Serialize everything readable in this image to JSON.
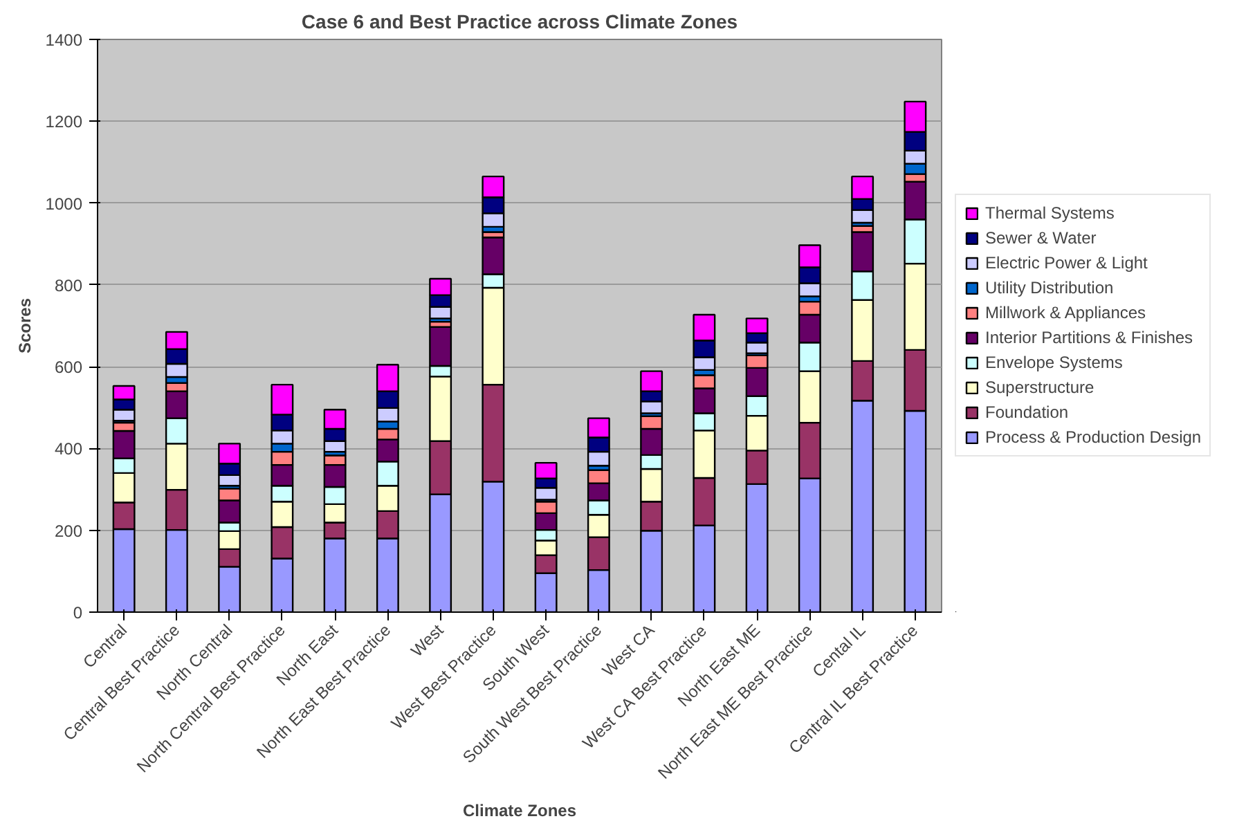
{
  "chart_data": {
    "type": "bar",
    "stacked": true,
    "title": "Case 6 and Best Practice across Climate Zones",
    "xlabel": "Climate Zones",
    "ylabel": "Scores",
    "categories": [
      "Central",
      "Central Best Practice",
      "North Central",
      "North Central Best Practice",
      "North East",
      "North East Best Practice",
      "West",
      "West Best Practice",
      "South West",
      "South West Best Practice",
      "West CA",
      "West CA Best Practice",
      "North East ME",
      "North East ME Best Practice",
      "Cental IL",
      "Central IL Best Practice"
    ],
    "ylim": [
      0,
      1400
    ],
    "yticks": [
      0,
      200,
      400,
      600,
      800,
      1000,
      1200,
      1400
    ],
    "grid": "y",
    "legend": "right",
    "series": [
      {
        "name": "Process & Production Design",
        "color": "#9999ff",
        "values": [
          203,
          201,
          111,
          131,
          180,
          180,
          288,
          319,
          95,
          103,
          199,
          212,
          313,
          327,
          517,
          492
        ]
      },
      {
        "name": "Foundation",
        "color": "#993366",
        "values": [
          65,
          98,
          43,
          77,
          39,
          67,
          130,
          237,
          44,
          80,
          71,
          116,
          82,
          136,
          97,
          149
        ]
      },
      {
        "name": "Superstructure",
        "color": "#ffffcc",
        "values": [
          72,
          113,
          44,
          62,
          45,
          62,
          158,
          237,
          36,
          55,
          80,
          116,
          85,
          126,
          149,
          211
        ]
      },
      {
        "name": "Envelope Systems",
        "color": "#ccffff",
        "values": [
          36,
          62,
          21,
          39,
          42,
          59,
          26,
          33,
          26,
          35,
          34,
          42,
          48,
          70,
          70,
          108
        ]
      },
      {
        "name": "Interior Partitions & Finishes",
        "color": "#660066",
        "values": [
          67,
          66,
          54,
          51,
          54,
          54,
          95,
          90,
          41,
          42,
          64,
          61,
          69,
          68,
          96,
          92
        ]
      },
      {
        "name": "Millwork & Appliances",
        "color": "#ff8080",
        "values": [
          20,
          20,
          29,
          32,
          23,
          26,
          13,
          13,
          28,
          32,
          31,
          32,
          31,
          32,
          15,
          19
        ]
      },
      {
        "name": "Utility Distribution",
        "color": "#0066cc",
        "values": [
          5,
          15,
          7,
          20,
          9,
          18,
          8,
          13,
          5,
          11,
          7,
          13,
          5,
          13,
          8,
          25
        ]
      },
      {
        "name": "Electric Power & Light",
        "color": "#ccccff",
        "values": [
          27,
          32,
          26,
          32,
          26,
          33,
          28,
          33,
          29,
          34,
          29,
          31,
          26,
          32,
          31,
          32
        ]
      },
      {
        "name": "Sewer & Water",
        "color": "#000080",
        "values": [
          25,
          36,
          28,
          39,
          30,
          41,
          29,
          39,
          23,
          35,
          25,
          41,
          23,
          39,
          27,
          46
        ]
      },
      {
        "name": "Thermal Systems",
        "color": "#ff00ff",
        "values": [
          33,
          42,
          49,
          73,
          47,
          65,
          40,
          51,
          38,
          47,
          49,
          63,
          36,
          54,
          55,
          74
        ]
      }
    ]
  }
}
